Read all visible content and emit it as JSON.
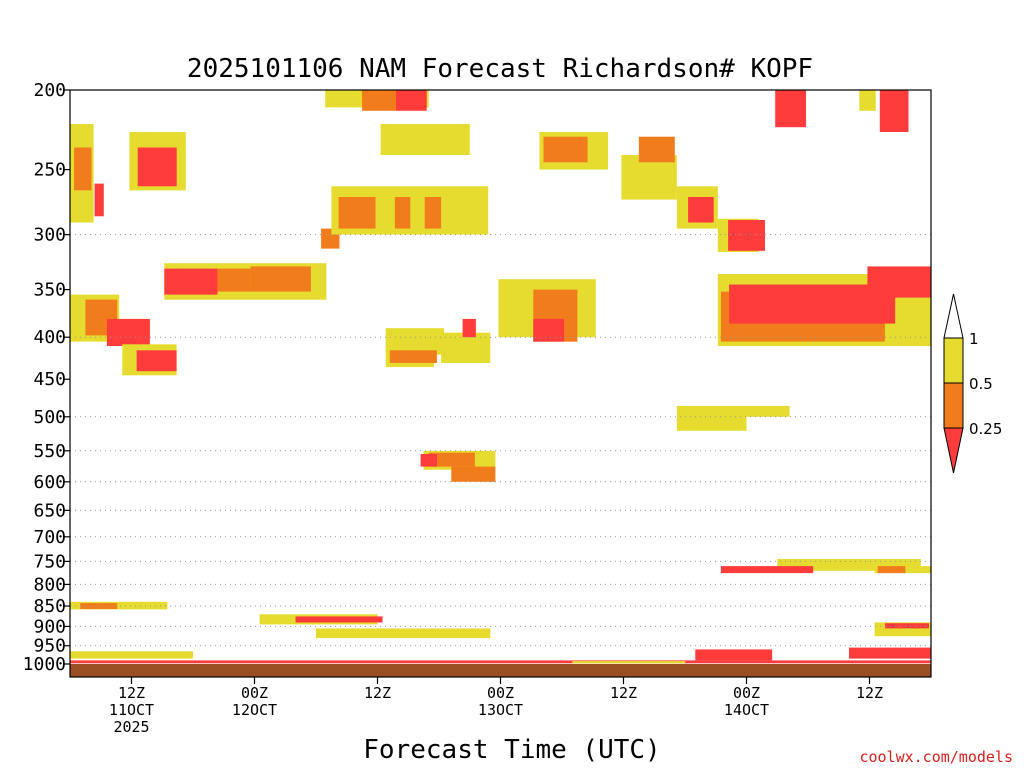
{
  "chart_data": {
    "type": "heatmap",
    "title": "2025101106 NAM Forecast Richardson# KOPF",
    "xlabel": "Forecast Time (UTC)",
    "credit": "coolwx.com/models",
    "y_scale": "log-pressure, inverted",
    "ylim_hPa": [
      1000,
      200
    ],
    "y_ticks": [
      200,
      250,
      300,
      350,
      400,
      450,
      500,
      550,
      600,
      650,
      700,
      750,
      800,
      850,
      900,
      950,
      1000
    ],
    "xlim_hours": [
      0,
      84
    ],
    "x_ticks": [
      {
        "hour": 6,
        "label": "12Z",
        "date": "11OCT",
        "year": "2025"
      },
      {
        "hour": 18,
        "label": "00Z",
        "date": "12OCT"
      },
      {
        "hour": 30,
        "label": "12Z"
      },
      {
        "hour": 42,
        "label": "00Z",
        "date": "13OCT"
      },
      {
        "hour": 54,
        "label": "12Z"
      },
      {
        "hour": 66,
        "label": "00Z",
        "date": "14OCT"
      },
      {
        "hour": 78,
        "label": "12Z"
      }
    ],
    "dotted_gridlines_hPa": [
      300,
      400,
      500,
      550,
      600,
      650,
      700,
      750,
      800,
      850,
      900,
      950
    ],
    "colorbar": {
      "labels": [
        "1",
        "0.5",
        "0.25"
      ],
      "bins": [
        {
          "range": "<0.25",
          "color": "#ff3c3c"
        },
        {
          "range": "0.25-0.5",
          "color": "#f07c1c"
        },
        {
          "range": "0.5-1",
          "color": "#e5dc2f"
        },
        {
          "range": ">1",
          "color": "#ffffff"
        }
      ]
    },
    "ground_color": "#9a4f22",
    "regions": [
      {
        "h0": 0.0,
        "h1": 2.3,
        "p0": 290,
        "p1": 220,
        "cat": "y"
      },
      {
        "h0": 0.4,
        "h1": 2.1,
        "p0": 265,
        "p1": 235,
        "cat": "o"
      },
      {
        "h0": 2.4,
        "h1": 3.3,
        "p0": 285,
        "p1": 260,
        "cat": "r"
      },
      {
        "h0": 0.0,
        "h1": 4.8,
        "p0": 405,
        "p1": 355,
        "cat": "y"
      },
      {
        "h0": 1.5,
        "h1": 4.6,
        "p0": 398,
        "p1": 360,
        "cat": "o"
      },
      {
        "h0": 3.6,
        "h1": 7.8,
        "p0": 410,
        "p1": 380,
        "cat": "r"
      },
      {
        "h0": 5.1,
        "h1": 10.4,
        "p0": 445,
        "p1": 408,
        "cat": "y"
      },
      {
        "h0": 6.5,
        "h1": 10.4,
        "p0": 440,
        "p1": 415,
        "cat": "r"
      },
      {
        "h0": 5.8,
        "h1": 11.3,
        "p0": 265,
        "p1": 225,
        "cat": "y"
      },
      {
        "h0": 6.6,
        "h1": 10.4,
        "p0": 262,
        "p1": 235,
        "cat": "r"
      },
      {
        "h0": 9.2,
        "h1": 25.0,
        "p0": 360,
        "p1": 325,
        "cat": "y"
      },
      {
        "h0": 9.2,
        "h1": 14.4,
        "p0": 355,
        "p1": 330,
        "cat": "r"
      },
      {
        "h0": 14.4,
        "h1": 17.6,
        "p0": 352,
        "p1": 330,
        "cat": "o"
      },
      {
        "h0": 17.6,
        "h1": 23.5,
        "p0": 352,
        "p1": 328,
        "cat": "o"
      },
      {
        "h0": 24.5,
        "h1": 26.3,
        "p0": 312,
        "p1": 295,
        "cat": "o"
      },
      {
        "h0": 25.5,
        "h1": 40.8,
        "p0": 300,
        "p1": 262,
        "cat": "y"
      },
      {
        "h0": 26.2,
        "h1": 29.8,
        "p0": 295,
        "p1": 270,
        "cat": "o"
      },
      {
        "h0": 30.3,
        "h1": 39.0,
        "p0": 240,
        "p1": 220,
        "cat": "y"
      },
      {
        "h0": 31.7,
        "h1": 33.2,
        "p0": 295,
        "p1": 270,
        "cat": "o"
      },
      {
        "h0": 34.6,
        "h1": 36.2,
        "p0": 295,
        "p1": 270,
        "cat": "o"
      },
      {
        "h0": 24.9,
        "h1": 35.0,
        "p0": 210,
        "p1": 200,
        "cat": "y"
      },
      {
        "h0": 28.5,
        "h1": 31.8,
        "p0": 212,
        "p1": 200,
        "cat": "o"
      },
      {
        "h0": 31.8,
        "h1": 34.8,
        "p0": 212,
        "p1": 200,
        "cat": "r"
      },
      {
        "h0": 30.8,
        "h1": 36.5,
        "p0": 420,
        "p1": 390,
        "cat": "y"
      },
      {
        "h0": 30.8,
        "h1": 35.5,
        "p0": 435,
        "p1": 415,
        "cat": "y"
      },
      {
        "h0": 31.2,
        "h1": 35.8,
        "p0": 430,
        "p1": 415,
        "cat": "o"
      },
      {
        "h0": 36.2,
        "h1": 41.0,
        "p0": 430,
        "p1": 395,
        "cat": "y"
      },
      {
        "h0": 38.3,
        "h1": 39.6,
        "p0": 400,
        "p1": 380,
        "cat": "r"
      },
      {
        "h0": 41.8,
        "h1": 51.3,
        "p0": 400,
        "p1": 340,
        "cat": "y"
      },
      {
        "h0": 45.2,
        "h1": 49.5,
        "p0": 405,
        "p1": 350,
        "cat": "o"
      },
      {
        "h0": 45.2,
        "h1": 48.2,
        "p0": 405,
        "p1": 380,
        "cat": "r"
      },
      {
        "h0": 45.8,
        "h1": 52.5,
        "p0": 250,
        "p1": 225,
        "cat": "y"
      },
      {
        "h0": 46.2,
        "h1": 50.5,
        "p0": 245,
        "p1": 228,
        "cat": "o"
      },
      {
        "h0": 53.8,
        "h1": 59.2,
        "p0": 272,
        "p1": 240,
        "cat": "y"
      },
      {
        "h0": 55.5,
        "h1": 59.0,
        "p0": 245,
        "p1": 228,
        "cat": "o"
      },
      {
        "h0": 59.2,
        "h1": 63.2,
        "p0": 295,
        "p1": 262,
        "cat": "y"
      },
      {
        "h0": 60.3,
        "h1": 62.8,
        "p0": 290,
        "p1": 270,
        "cat": "r"
      },
      {
        "h0": 63.2,
        "h1": 67.2,
        "p0": 315,
        "p1": 287,
        "cat": "y"
      },
      {
        "h0": 64.2,
        "h1": 67.8,
        "p0": 314,
        "p1": 288,
        "cat": "r"
      },
      {
        "h0": 63.2,
        "h1": 84.0,
        "p0": 410,
        "p1": 335,
        "cat": "y"
      },
      {
        "h0": 63.5,
        "h1": 79.5,
        "p0": 405,
        "p1": 352,
        "cat": "o"
      },
      {
        "h0": 64.3,
        "h1": 80.5,
        "p0": 385,
        "p1": 345,
        "cat": "r"
      },
      {
        "h0": 77.8,
        "h1": 84.0,
        "p0": 358,
        "p1": 328,
        "cat": "r"
      },
      {
        "h0": 68.8,
        "h1": 71.8,
        "p0": 222,
        "p1": 200,
        "cat": "r"
      },
      {
        "h0": 79.0,
        "h1": 81.8,
        "p0": 225,
        "p1": 200,
        "cat": "r"
      },
      {
        "h0": 77.0,
        "h1": 78.6,
        "p0": 212,
        "p1": 200,
        "cat": "y"
      },
      {
        "h0": 59.2,
        "h1": 66.0,
        "p0": 520,
        "p1": 485,
        "cat": "y"
      },
      {
        "h0": 66.0,
        "h1": 70.2,
        "p0": 500,
        "p1": 485,
        "cat": "y"
      },
      {
        "h0": 34.5,
        "h1": 41.5,
        "p0": 580,
        "p1": 550,
        "cat": "y"
      },
      {
        "h0": 35.0,
        "h1": 39.5,
        "p0": 575,
        "p1": 553,
        "cat": "o"
      },
      {
        "h0": 34.2,
        "h1": 35.8,
        "p0": 575,
        "p1": 555,
        "cat": "r"
      },
      {
        "h0": 37.2,
        "h1": 41.5,
        "p0": 600,
        "p1": 575,
        "cat": "o"
      },
      {
        "h0": 69.0,
        "h1": 83.0,
        "p0": 770,
        "p1": 745,
        "cat": "y"
      },
      {
        "h0": 63.5,
        "h1": 72.5,
        "p0": 775,
        "p1": 760,
        "cat": "r"
      },
      {
        "h0": 78.5,
        "h1": 84.0,
        "p0": 775,
        "p1": 760,
        "cat": "y"
      },
      {
        "h0": 78.8,
        "h1": 81.5,
        "p0": 775,
        "p1": 760,
        "cat": "o"
      },
      {
        "h0": 0.0,
        "h1": 9.5,
        "p0": 858,
        "p1": 840,
        "cat": "y"
      },
      {
        "h0": 1.0,
        "h1": 4.6,
        "p0": 857,
        "p1": 843,
        "cat": "o"
      },
      {
        "h0": 18.5,
        "h1": 30.0,
        "p0": 895,
        "p1": 870,
        "cat": "y"
      },
      {
        "h0": 22.0,
        "h1": 30.5,
        "p0": 890,
        "p1": 875,
        "cat": "r"
      },
      {
        "h0": 24.0,
        "h1": 41.0,
        "p0": 930,
        "p1": 905,
        "cat": "y"
      },
      {
        "h0": 78.5,
        "h1": 84.0,
        "p0": 925,
        "p1": 890,
        "cat": "y"
      },
      {
        "h0": 79.5,
        "h1": 83.8,
        "p0": 905,
        "p1": 892,
        "cat": "r"
      },
      {
        "h0": 0.0,
        "h1": 12.0,
        "p0": 985,
        "p1": 965,
        "cat": "y"
      },
      {
        "h0": 61.0,
        "h1": 68.5,
        "p0": 990,
        "p1": 960,
        "cat": "r"
      },
      {
        "h0": 76.0,
        "h1": 84.0,
        "p0": 985,
        "p1": 955,
        "cat": "r"
      },
      {
        "h0": 0.0,
        "h1": 84.0,
        "p0": 998,
        "p1": 990,
        "cat": "r"
      },
      {
        "h0": 49.0,
        "h1": 60.0,
        "p0": 998,
        "p1": 992,
        "cat": "y"
      }
    ]
  }
}
